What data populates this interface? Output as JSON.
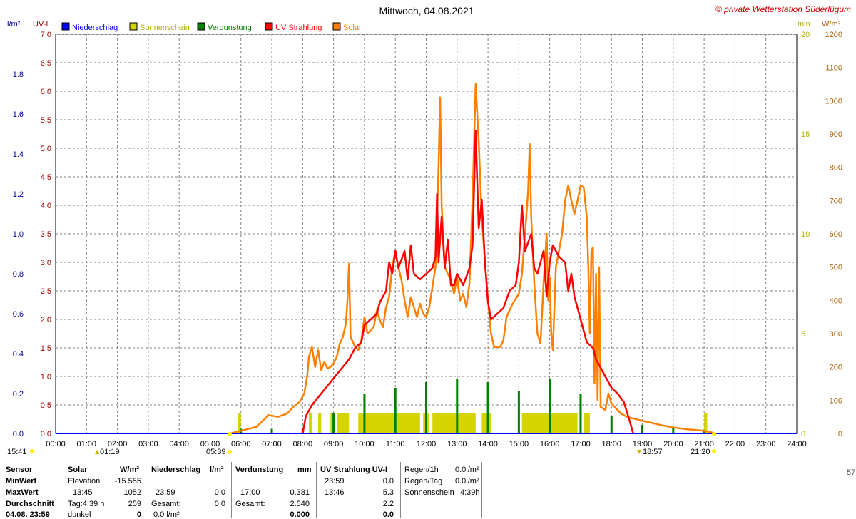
{
  "title": "Mittwoch, 04.08.2021",
  "watermark": "© private Wetterstation Süderlügum",
  "axes": {
    "left1_unit": "l/m²",
    "left2_unit": "UV-I",
    "right1_unit": "min",
    "right2_unit": "W/m²",
    "left1_ticks": [
      "0.0",
      "0.2",
      "0.4",
      "0.6",
      "0.8",
      "1.0",
      "1.2",
      "1.4",
      "1.6",
      "1.8"
    ],
    "left2_ticks": [
      "0.0",
      "0.5",
      "1.0",
      "1.5",
      "2.0",
      "2.5",
      "3.0",
      "3.5",
      "4.0",
      "4.5",
      "5.0",
      "5.5",
      "6.0",
      "6.5",
      "7.0"
    ],
    "right1_ticks": [
      "0",
      "5",
      "10",
      "15",
      "20"
    ],
    "right2_ticks": [
      "0",
      "100",
      "200",
      "300",
      "400",
      "500",
      "600",
      "700",
      "800",
      "900",
      "1000",
      "1100",
      "1200"
    ],
    "x_ticks": [
      "00:00",
      "01:00",
      "02:00",
      "03:00",
      "04:00",
      "05:00",
      "06:00",
      "07:00",
      "08:00",
      "09:00",
      "10:00",
      "11:00",
      "12:00",
      "13:00",
      "14:00",
      "15:00",
      "16:00",
      "17:00",
      "18:00",
      "19:00",
      "20:00",
      "21:00",
      "22:00",
      "23:00",
      "24:00"
    ]
  },
  "legend": [
    {
      "label": "Niederschlag",
      "color": "#0000ff"
    },
    {
      "label": "Sonnenschein",
      "color": "#d4d400"
    },
    {
      "label": "Verdunstung",
      "color": "#008000"
    },
    {
      "label": "UV Strahlung",
      "color": "#ff0000"
    },
    {
      "label": "Solar",
      "color": "#ff8000"
    }
  ],
  "colors": {
    "uv": "#ff0000",
    "solar": "#ff8000",
    "sunshine": "#d4d400",
    "evaporation": "#008000",
    "rain": "#0000ff",
    "left1": "#0000a0",
    "left2": "#a00000",
    "right1": "#b0b000",
    "right2": "#b06000",
    "grid": "#808080"
  },
  "astro": {
    "moon_left": "15:41",
    "moonrise": "01:19",
    "sunrise": "05:39",
    "sunset": "18:57",
    "moonset": "21:20"
  },
  "chart_data": {
    "type": "line",
    "x_unit": "hour of day",
    "xlim": [
      0,
      24
    ],
    "series": [
      {
        "name": "Solar",
        "axis": "W/m²",
        "ylim": [
          0,
          1200
        ],
        "points": [
          [
            5.65,
            0
          ],
          [
            6.0,
            8
          ],
          [
            6.5,
            20
          ],
          [
            6.9,
            55
          ],
          [
            7.2,
            50
          ],
          [
            7.5,
            60
          ],
          [
            7.7,
            80
          ],
          [
            7.9,
            95
          ],
          [
            8.05,
            120
          ],
          [
            8.15,
            175
          ],
          [
            8.2,
            230
          ],
          [
            8.3,
            260
          ],
          [
            8.4,
            200
          ],
          [
            8.5,
            250
          ],
          [
            8.6,
            190
          ],
          [
            8.7,
            215
          ],
          [
            8.8,
            195
          ],
          [
            8.9,
            200
          ],
          [
            9.0,
            210
          ],
          [
            9.1,
            230
          ],
          [
            9.2,
            270
          ],
          [
            9.3,
            290
          ],
          [
            9.4,
            330
          ],
          [
            9.45,
            400
          ],
          [
            9.5,
            510
          ],
          [
            9.55,
            290
          ],
          [
            9.7,
            260
          ],
          [
            9.8,
            250
          ],
          [
            9.9,
            280
          ],
          [
            10.0,
            350
          ],
          [
            10.1,
            300
          ],
          [
            10.3,
            320
          ],
          [
            10.4,
            370
          ],
          [
            10.5,
            340
          ],
          [
            10.6,
            320
          ],
          [
            10.7,
            380
          ],
          [
            10.8,
            410
          ],
          [
            10.9,
            500
          ],
          [
            11.0,
            550
          ],
          [
            11.1,
            500
          ],
          [
            11.2,
            460
          ],
          [
            11.3,
            400
          ],
          [
            11.4,
            350
          ],
          [
            11.5,
            410
          ],
          [
            11.6,
            380
          ],
          [
            11.7,
            350
          ],
          [
            11.8,
            390
          ],
          [
            11.9,
            360
          ],
          [
            12.0,
            350
          ],
          [
            12.1,
            380
          ],
          [
            12.2,
            440
          ],
          [
            12.3,
            500
          ],
          [
            12.4,
            800
          ],
          [
            12.45,
            1010
          ],
          [
            12.5,
            690
          ],
          [
            12.6,
            500
          ],
          [
            12.7,
            480
          ],
          [
            12.8,
            460
          ],
          [
            12.9,
            420
          ],
          [
            13.0,
            470
          ],
          [
            13.1,
            400
          ],
          [
            13.2,
            420
          ],
          [
            13.3,
            380
          ],
          [
            13.4,
            450
          ],
          [
            13.5,
            700
          ],
          [
            13.6,
            1050
          ],
          [
            13.7,
            880
          ],
          [
            13.8,
            650
          ],
          [
            13.9,
            520
          ],
          [
            14.0,
            400
          ],
          [
            14.1,
            300
          ],
          [
            14.2,
            260
          ],
          [
            14.4,
            260
          ],
          [
            14.5,
            280
          ],
          [
            14.6,
            350
          ],
          [
            14.8,
            390
          ],
          [
            15.0,
            420
          ],
          [
            15.1,
            480
          ],
          [
            15.2,
            600
          ],
          [
            15.3,
            730
          ],
          [
            15.35,
            870
          ],
          [
            15.4,
            650
          ],
          [
            15.5,
            450
          ],
          [
            15.6,
            300
          ],
          [
            15.7,
            270
          ],
          [
            15.8,
            450
          ],
          [
            15.9,
            600
          ],
          [
            15.95,
            400
          ],
          [
            16.0,
            470
          ],
          [
            16.05,
            300
          ],
          [
            16.1,
            250
          ],
          [
            16.2,
            500
          ],
          [
            16.3,
            550
          ],
          [
            16.4,
            600
          ],
          [
            16.5,
            700
          ],
          [
            16.6,
            745
          ],
          [
            16.7,
            700
          ],
          [
            16.8,
            660
          ],
          [
            16.9,
            700
          ],
          [
            17.0,
            745
          ],
          [
            17.1,
            740
          ],
          [
            17.2,
            650
          ],
          [
            17.25,
            500
          ],
          [
            17.3,
            300
          ],
          [
            17.35,
            550
          ],
          [
            17.4,
            560
          ],
          [
            17.45,
            150
          ],
          [
            17.5,
            480
          ],
          [
            17.55,
            100
          ],
          [
            17.6,
            500
          ],
          [
            17.65,
            80
          ],
          [
            17.8,
            70
          ],
          [
            17.9,
            120
          ],
          [
            18.0,
            90
          ],
          [
            18.1,
            80
          ],
          [
            18.3,
            60
          ],
          [
            18.5,
            50
          ],
          [
            18.7,
            45
          ],
          [
            19.0,
            38
          ],
          [
            19.3,
            32
          ],
          [
            19.6,
            25
          ],
          [
            20.0,
            18
          ],
          [
            20.5,
            12
          ],
          [
            21.0,
            8
          ],
          [
            21.3,
            2
          ],
          [
            21.35,
            0
          ]
        ]
      },
      {
        "name": "UV Strahlung",
        "axis": "UV-I",
        "ylim": [
          0,
          7
        ],
        "points": [
          [
            8.0,
            0
          ],
          [
            8.1,
            0.3
          ],
          [
            8.3,
            0.5
          ],
          [
            8.6,
            0.7
          ],
          [
            8.9,
            0.9
          ],
          [
            9.2,
            1.1
          ],
          [
            9.5,
            1.3
          ],
          [
            9.7,
            1.5
          ],
          [
            9.9,
            1.6
          ],
          [
            10.0,
            1.9
          ],
          [
            10.2,
            2.0
          ],
          [
            10.4,
            2.1
          ],
          [
            10.5,
            2.3
          ],
          [
            10.7,
            2.5
          ],
          [
            10.8,
            3.0
          ],
          [
            10.9,
            2.8
          ],
          [
            11.0,
            3.2
          ],
          [
            11.1,
            2.9
          ],
          [
            11.3,
            3.2
          ],
          [
            11.4,
            2.7
          ],
          [
            11.5,
            3.3
          ],
          [
            11.6,
            2.8
          ],
          [
            11.8,
            2.7
          ],
          [
            12.0,
            2.8
          ],
          [
            12.2,
            2.9
          ],
          [
            12.3,
            3.1
          ],
          [
            12.35,
            4.2
          ],
          [
            12.4,
            3.0
          ],
          [
            12.5,
            3.8
          ],
          [
            12.6,
            2.9
          ],
          [
            12.7,
            3.4
          ],
          [
            12.8,
            2.6
          ],
          [
            12.9,
            2.6
          ],
          [
            13.0,
            2.8
          ],
          [
            13.2,
            2.6
          ],
          [
            13.4,
            2.9
          ],
          [
            13.5,
            3.3
          ],
          [
            13.6,
            5.3
          ],
          [
            13.7,
            3.6
          ],
          [
            13.8,
            4.1
          ],
          [
            13.9,
            3.0
          ],
          [
            14.0,
            2.3
          ],
          [
            14.1,
            2.0
          ],
          [
            14.3,
            2.1
          ],
          [
            14.5,
            2.2
          ],
          [
            14.7,
            2.5
          ],
          [
            14.9,
            2.6
          ],
          [
            15.0,
            3.0
          ],
          [
            15.1,
            4.0
          ],
          [
            15.2,
            3.2
          ],
          [
            15.4,
            3.5
          ],
          [
            15.5,
            2.9
          ],
          [
            15.6,
            2.8
          ],
          [
            15.8,
            3.2
          ],
          [
            15.9,
            2.4
          ],
          [
            16.0,
            3.0
          ],
          [
            16.1,
            3.3
          ],
          [
            16.3,
            3.1
          ],
          [
            16.5,
            3.0
          ],
          [
            16.6,
            2.5
          ],
          [
            16.7,
            2.8
          ],
          [
            16.8,
            2.4
          ],
          [
            17.0,
            2.0
          ],
          [
            17.1,
            1.8
          ],
          [
            17.2,
            1.6
          ],
          [
            17.4,
            1.5
          ],
          [
            17.5,
            1.3
          ],
          [
            17.6,
            1.2
          ],
          [
            17.8,
            1.0
          ],
          [
            18.0,
            0.8
          ],
          [
            18.2,
            0.7
          ],
          [
            18.4,
            0.55
          ],
          [
            18.6,
            0.2
          ],
          [
            18.7,
            0.0
          ]
        ]
      }
    ],
    "evaporation_bars": [
      6.0,
      7.0,
      8.0,
      9.0,
      10.0,
      11.0,
      12.0,
      13.0,
      14.0,
      15.0,
      16.0,
      17.0,
      18.0,
      19.0,
      20.0,
      21.0
    ],
    "evaporation_heights_uvscale": [
      0.08,
      0.08,
      0.1,
      0.35,
      0.7,
      0.8,
      0.9,
      0.95,
      0.9,
      0.75,
      0.95,
      0.7,
      0.3,
      0.15,
      0.1,
      0.05
    ],
    "sunshine_intervals": [
      [
        5.9,
        6.0
      ],
      [
        8.2,
        8.3
      ],
      [
        8.5,
        8.6
      ],
      [
        8.9,
        9.0
      ],
      [
        9.1,
        9.5
      ],
      [
        9.8,
        11.8
      ],
      [
        11.9,
        12.1
      ],
      [
        12.2,
        13.6
      ],
      [
        13.8,
        14.1
      ],
      [
        15.1,
        16.0
      ],
      [
        16.05,
        16.9
      ],
      [
        17.1,
        17.3
      ],
      [
        21.0,
        21.1
      ]
    ],
    "sunshine_height_min": 1
  },
  "stats": {
    "headers": {
      "sensor": "Sensor",
      "solar": "Solar",
      "solar_unit": "W/m²",
      "rain": "Niederschlag",
      "rain_unit": "l/m²",
      "evap": "Verdunstung",
      "evap_unit": "mm",
      "uv": "UV Strahlung UV-I"
    },
    "row_labels": [
      "MinWert",
      "MaxWert",
      "Durchschnitt",
      "04.08. 23:59"
    ],
    "solar": [
      [
        "Elevation",
        "-15.555"
      ],
      [
        "13:45",
        "1052"
      ],
      [
        "Tag:4:39 h",
        "259"
      ],
      [
        "dunkel",
        "0"
      ]
    ],
    "rain": [
      [
        "23:59",
        "0.0"
      ],
      [
        "Gesamt:",
        "0.0"
      ],
      [
        "0.0 l/m²",
        ""
      ]
    ],
    "evap": [
      [
        "17:00",
        "0.381"
      ],
      [
        "Gesamt:",
        "2.540"
      ],
      [
        "",
        "0.000"
      ]
    ],
    "uv": [
      [
        "23:59",
        "0.0"
      ],
      [
        "13:46",
        "5.3"
      ],
      [
        "",
        "2.2"
      ],
      [
        "",
        "0.0"
      ]
    ],
    "regen": [
      [
        "Regen/1h",
        "0.0l/m²"
      ],
      [
        "Regen/Tag",
        "0.0l/m²"
      ],
      [
        "Sonnenschein",
        "4:39h"
      ]
    ],
    "edge_number": "57"
  }
}
